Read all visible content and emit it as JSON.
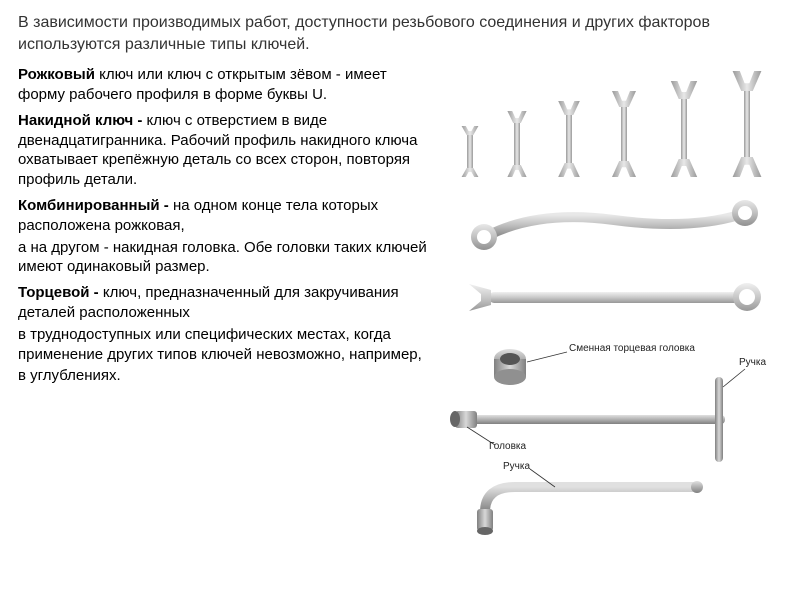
{
  "intro": "В зависимости производимых работ, доступности резьбового соединения и других факторов используются различные типы ключей.",
  "types": {
    "open": {
      "name": "Рожковый",
      "text1": " ключ или ключ с открытым зёвом - имеет форму рабочего профиля в форме буквы U."
    },
    "box": {
      "name": "Накидной ключ - ",
      "text1": "ключ с отверстием в виде двенадцатигранника. Рабочий профиль накидного ключа охватывает крепёжную деталь со всех сторон, повторяя профиль детали."
    },
    "combo": {
      "name": "Комбинированный - ",
      "text1": "на одном конце тела которых расположена рожковая,",
      "text2": "а на другом - накидная головка. Обе головки таких ключей имеют одинаковый размер."
    },
    "socket": {
      "name": "Торцевой - ",
      "text1": "ключ, предназначенный для закручивания деталей расположенных",
      "text2": "в труднодоступных или специфических местах, когда применение других типов ключей невозможно, например,",
      "text3": "в углублениях."
    }
  },
  "panel1": {
    "count": 6,
    "heights": [
      55,
      70,
      80,
      90,
      100,
      110
    ],
    "colors": {
      "metal": "#c8c8c8",
      "shadow": "#9a9a9a",
      "highlight": "#e8e8e8"
    }
  },
  "diagram": {
    "labels": {
      "socket_detached": "Сменная торцевая головка",
      "handle_right": "Ручка",
      "head_left": "Головка",
      "handle_bottom": "Ручка"
    },
    "colors": {
      "metal_light": "#d8d8d8",
      "metal_mid": "#b0b0b0",
      "metal_dark": "#808080",
      "line": "#333333"
    }
  },
  "colors": {
    "text": "#000000",
    "intro_text": "#333333",
    "bg": "#ffffff"
  }
}
